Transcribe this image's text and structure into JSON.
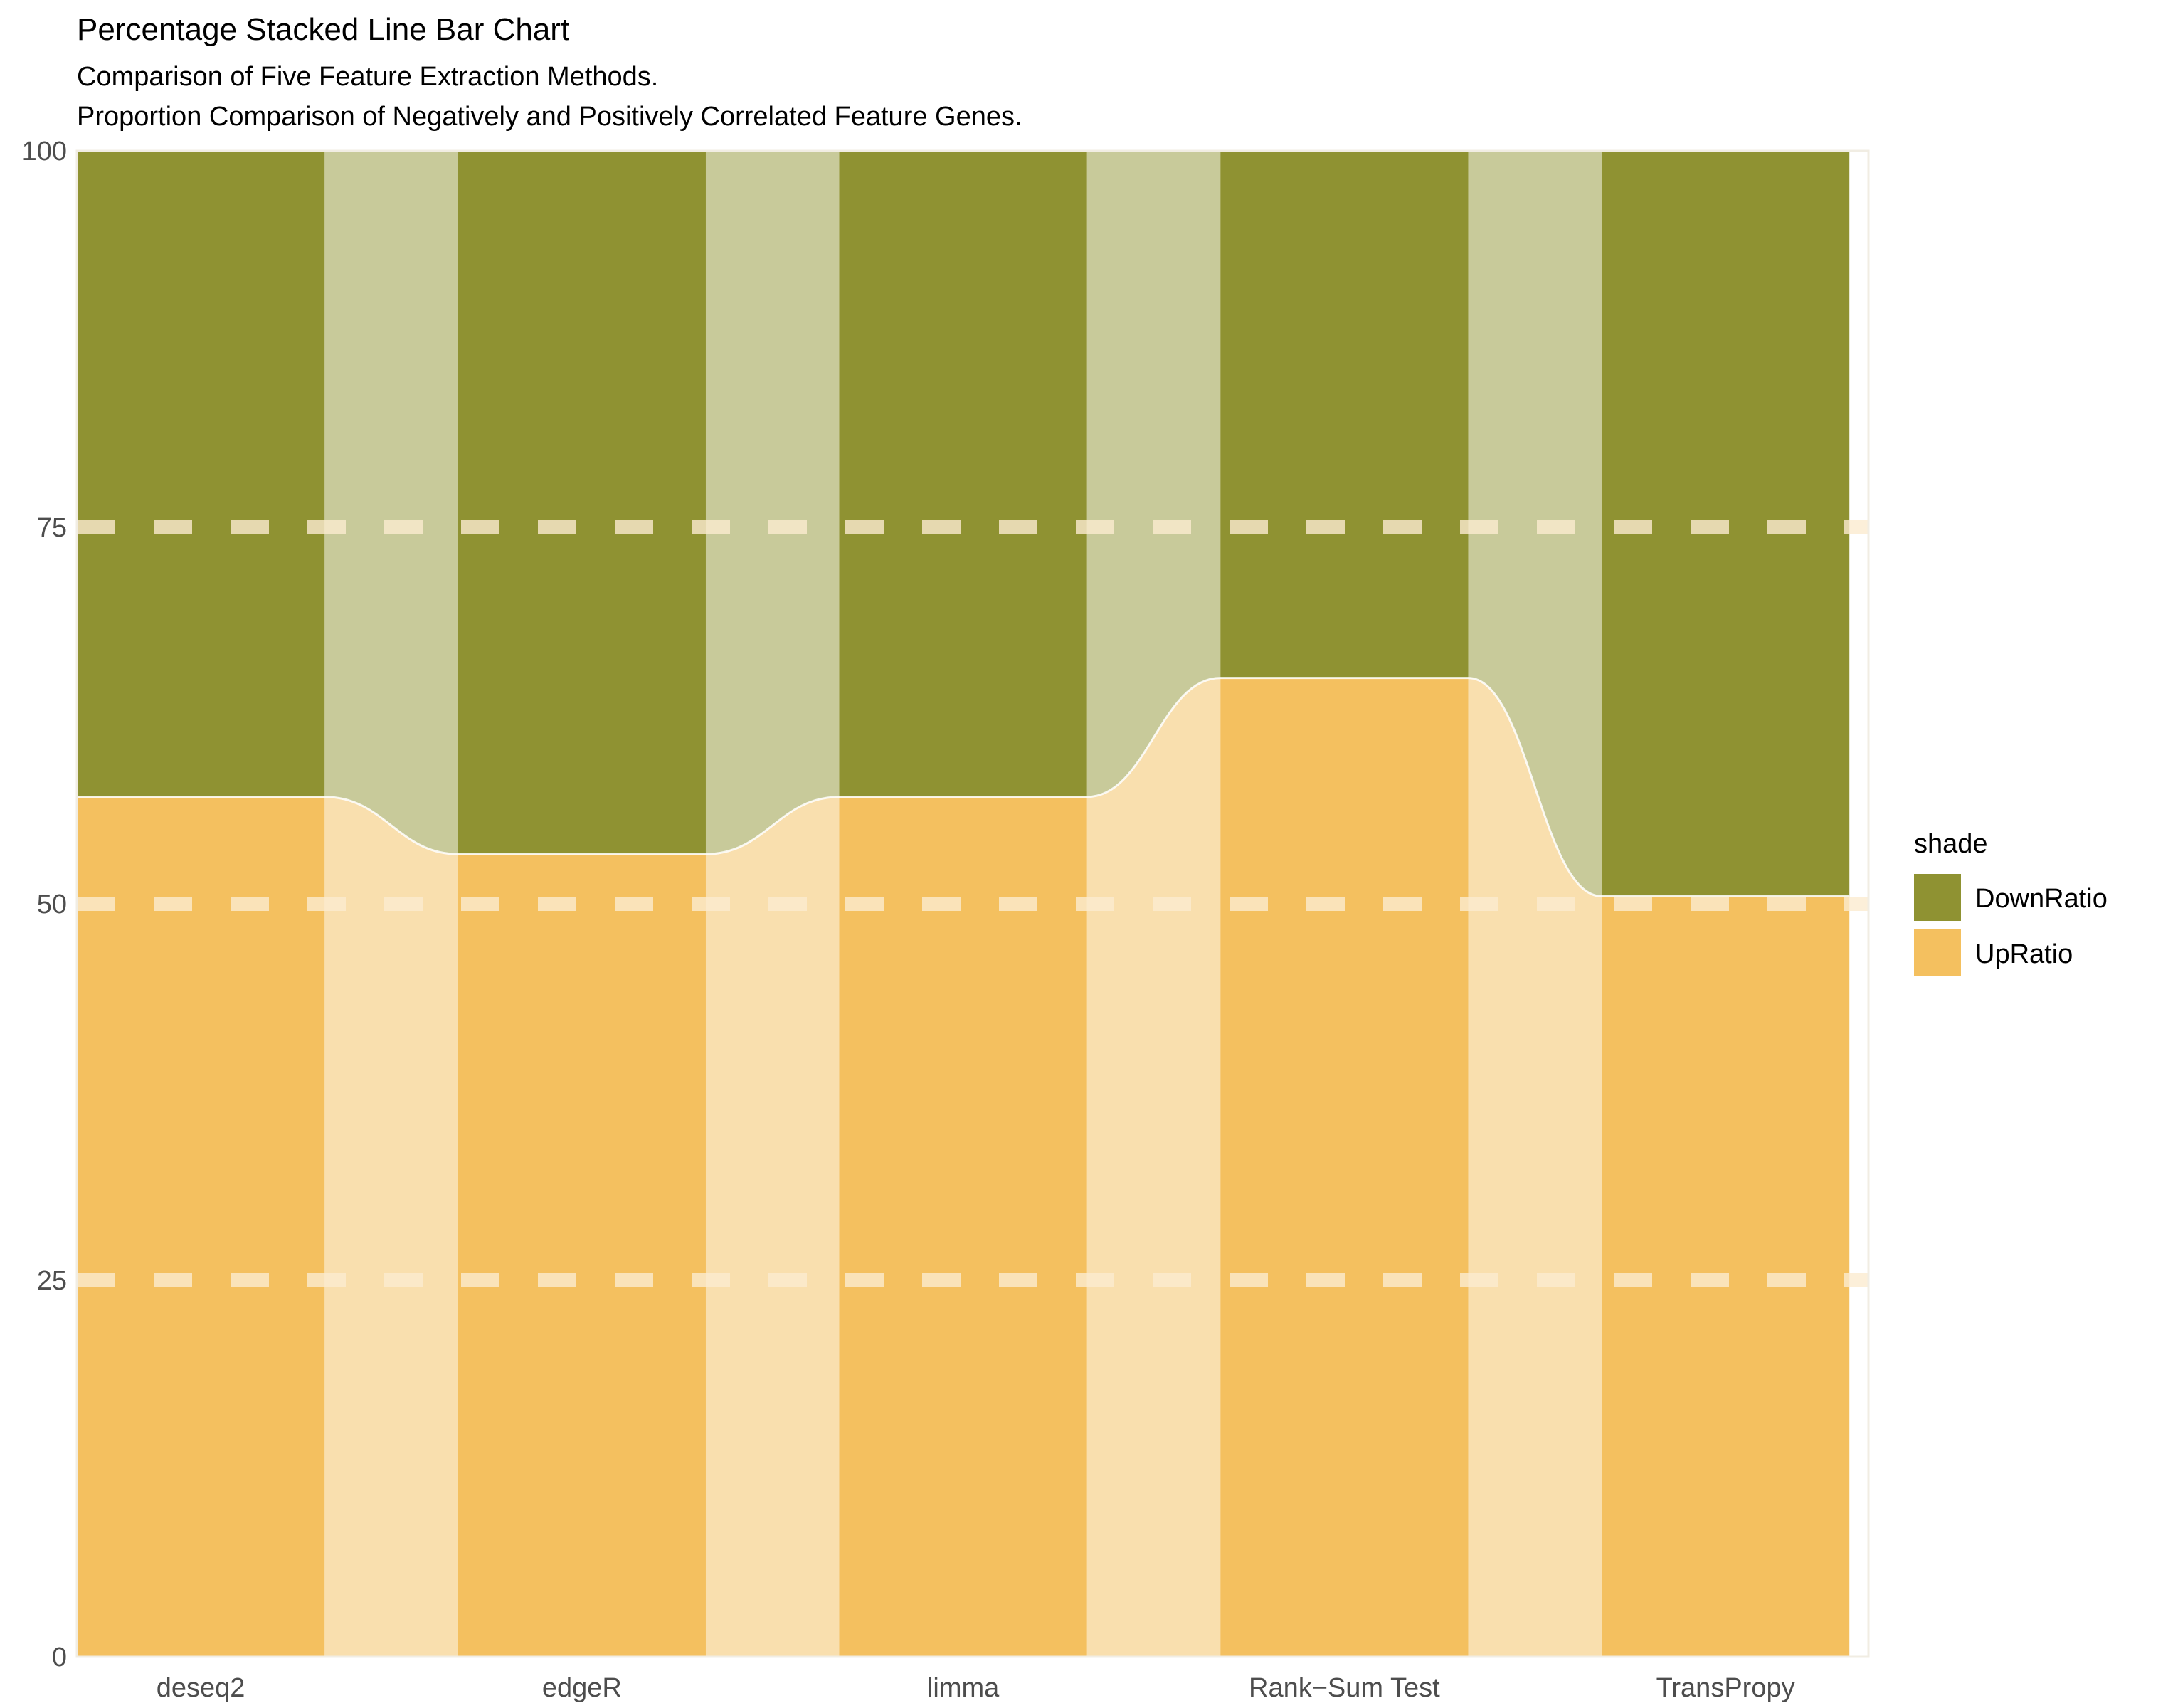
{
  "chart_data": {
    "type": "bar",
    "title": "Percentage Stacked Line Bar Chart",
    "subtitle_lines": [
      "Comparison of Five Feature Extraction Methods.",
      "Proportion Comparison of Negatively and Positively Correlated Feature Genes."
    ],
    "categories": [
      "deseq2",
      "edgeR",
      "limma",
      "Rank−Sum Test",
      "TransPropy"
    ],
    "series": [
      {
        "name": "UpRatio",
        "values": [
          57.1,
          53.3,
          57.1,
          65.0,
          50.5
        ]
      },
      {
        "name": "DownRatio",
        "values": [
          42.9,
          46.7,
          42.9,
          35.0,
          49.5
        ]
      }
    ],
    "stacked": "percent",
    "ylim": [
      0,
      100
    ],
    "yticks": [
      "0",
      "25",
      "50",
      "75",
      "100"
    ],
    "reference_lines": [
      25,
      50,
      75
    ],
    "xlabel": "",
    "ylabel": "",
    "legend": {
      "title": "shade",
      "position": "right",
      "entries": [
        "DownRatio",
        "UpRatio"
      ]
    },
    "colors": {
      "UpRatio": "#f4c05f",
      "DownRatio": "#8f9232",
      "UpRatio_band": "#f9dfae",
      "DownRatio_band": "#c8ca9a",
      "reference_line": "#fbebd0",
      "outline": "#f1ede3"
    },
    "grid": false
  }
}
